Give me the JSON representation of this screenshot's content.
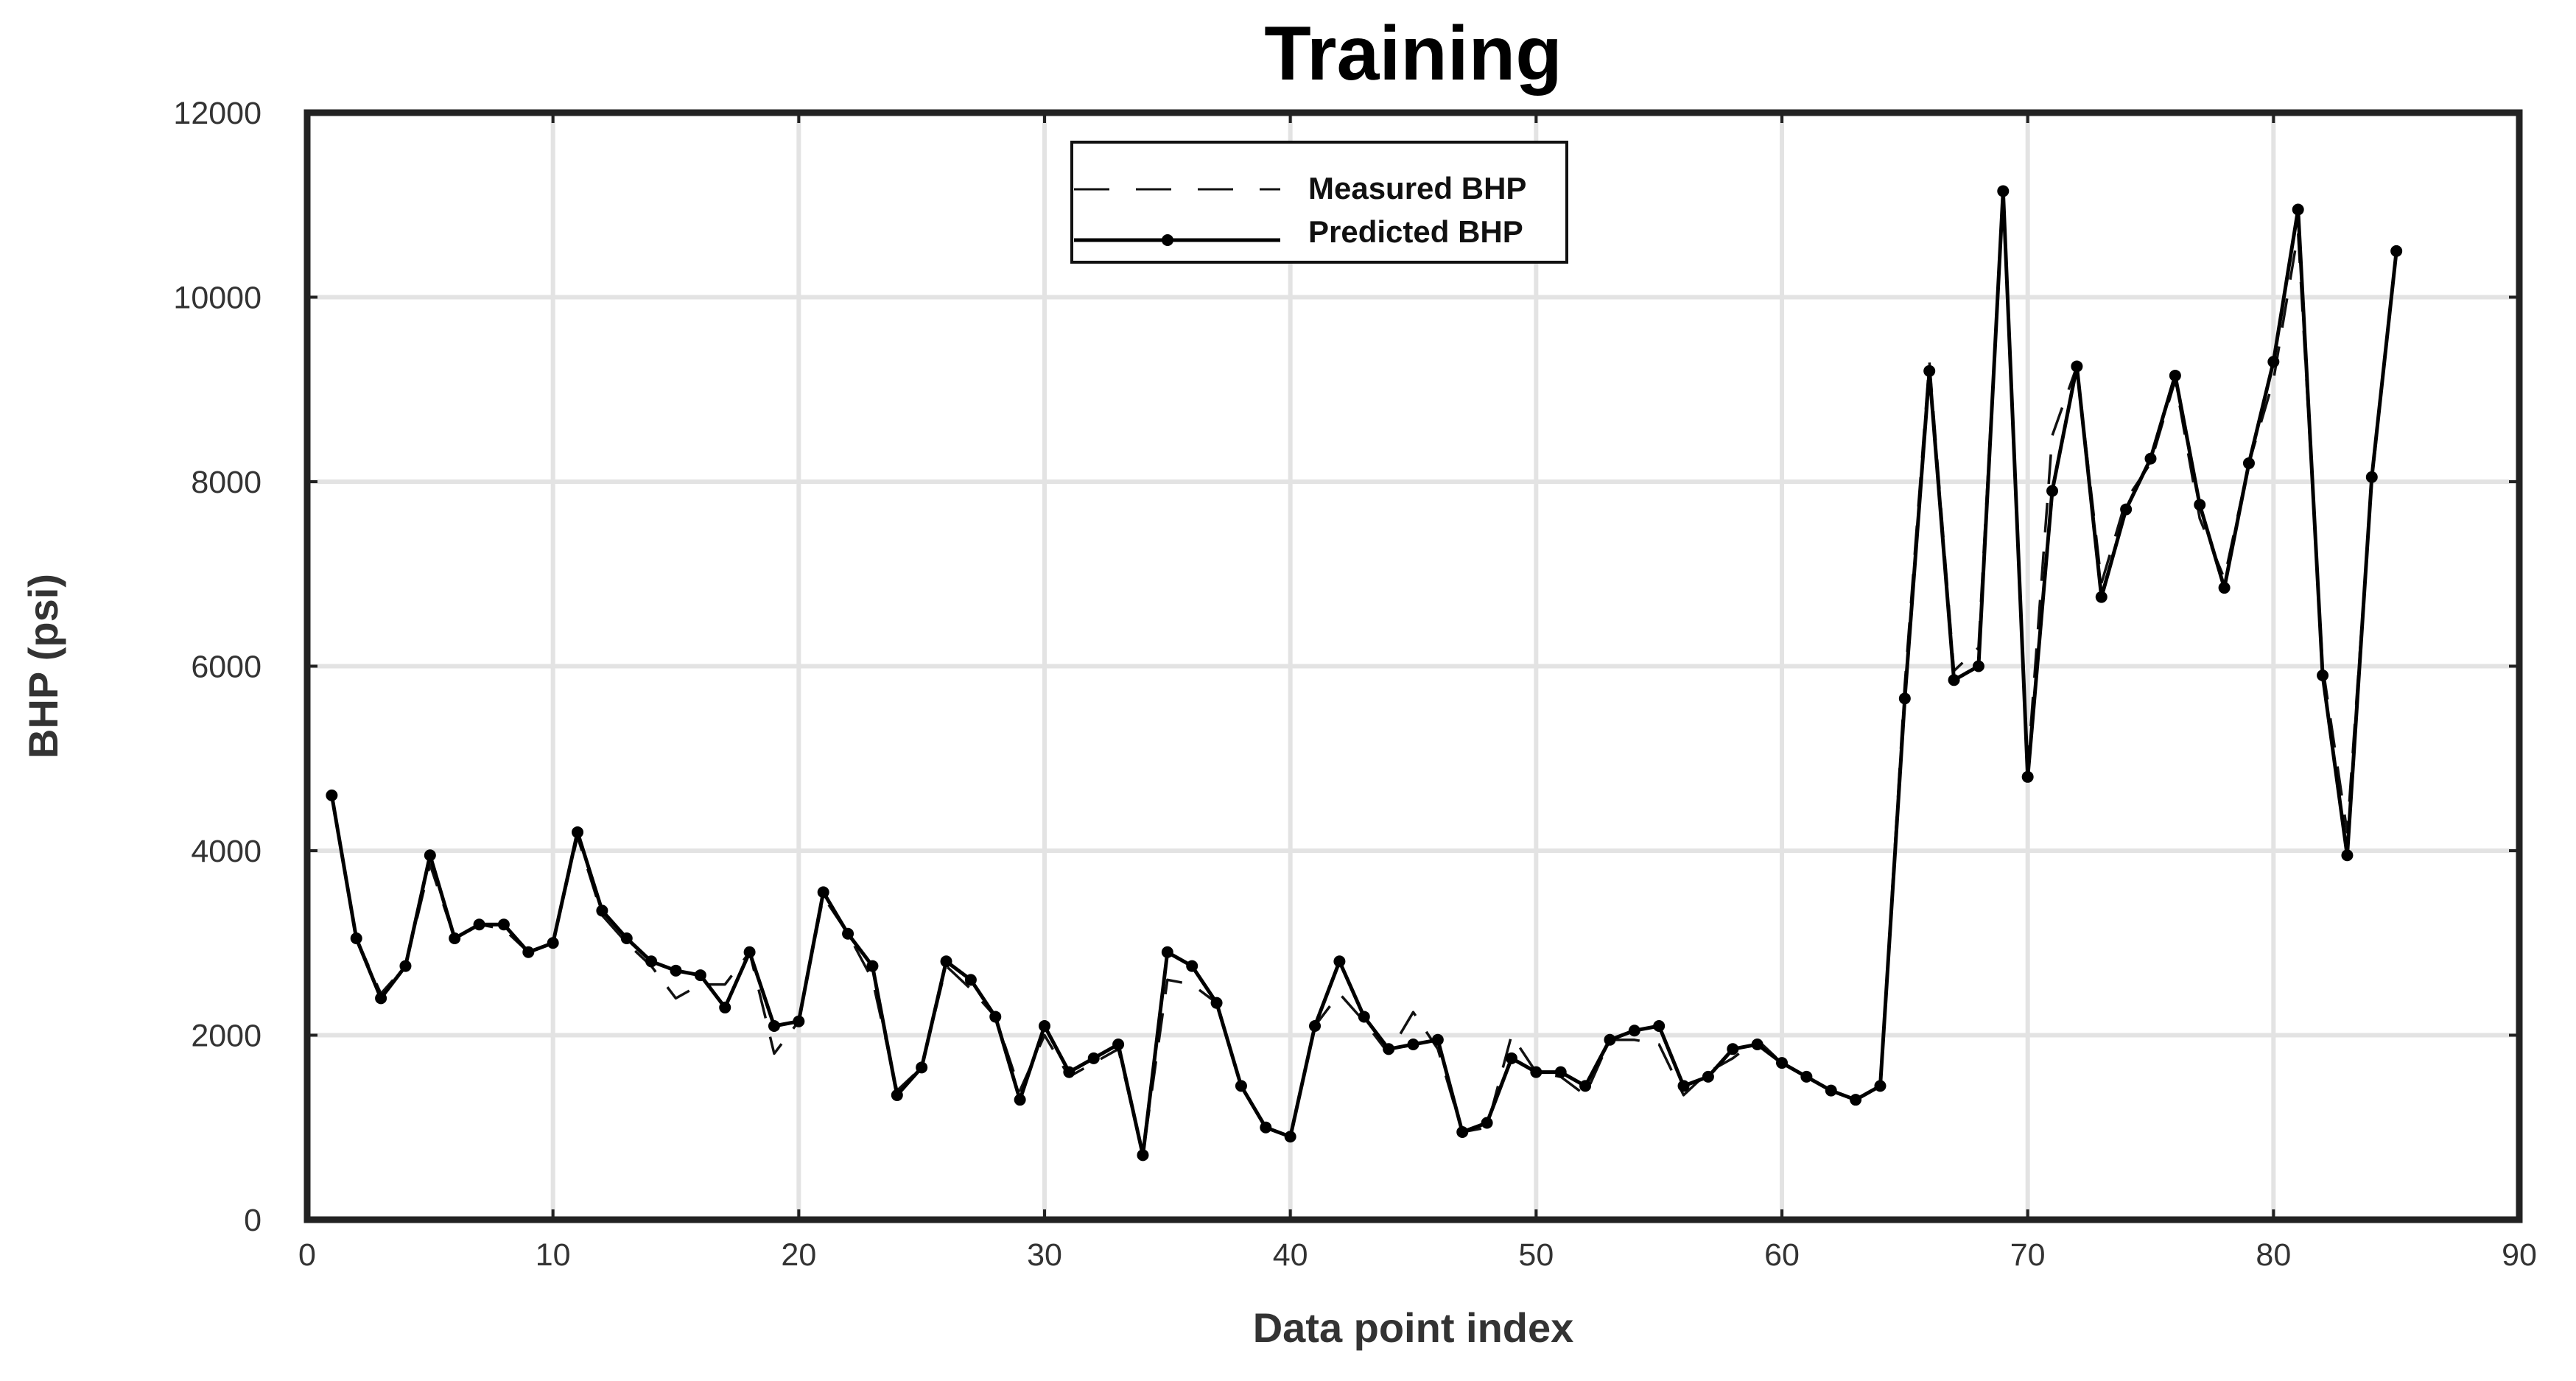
{
  "chart_data": {
    "type": "line",
    "title": "Training",
    "xlabel": "Data point index",
    "ylabel": "BHP (psi)",
    "xlim": [
      0,
      90
    ],
    "ylim": [
      0,
      12000
    ],
    "xticks": [
      0,
      10,
      20,
      30,
      40,
      50,
      60,
      70,
      80,
      90
    ],
    "yticks": [
      0,
      2000,
      4000,
      6000,
      8000,
      10000,
      12000
    ],
    "grid": true,
    "legend_position": "top-center",
    "series": [
      {
        "name": "Measured BHP",
        "style": "dashed",
        "color": "#111111",
        "x": [
          1,
          2,
          3,
          4,
          5,
          6,
          7,
          8,
          9,
          10,
          11,
          12,
          13,
          14,
          15,
          16,
          17,
          18,
          19,
          20,
          21,
          22,
          23,
          24,
          25,
          26,
          27,
          28,
          29,
          30,
          31,
          32,
          33,
          34,
          35,
          36,
          37,
          38,
          39,
          40,
          41,
          42,
          43,
          44,
          45,
          46,
          47,
          48,
          49,
          50,
          51,
          52,
          53,
          54,
          55,
          56,
          57,
          58,
          59,
          60,
          61,
          62,
          63,
          64,
          65,
          66,
          67,
          68,
          69,
          70,
          71,
          72,
          73,
          74,
          75,
          76,
          77,
          78,
          79,
          80,
          81,
          82,
          83,
          84,
          85
        ],
        "values": [
          4600,
          3050,
          2450,
          2750,
          3850,
          3050,
          3200,
          3150,
          2900,
          3000,
          4150,
          3300,
          3000,
          2750,
          2400,
          2550,
          2550,
          2900,
          1800,
          2150,
          3500,
          3100,
          2600,
          1400,
          1650,
          2750,
          2500,
          2200,
          1400,
          2000,
          1550,
          1700,
          1850,
          700,
          2600,
          2550,
          2350,
          1450,
          1000,
          900,
          2100,
          2450,
          2150,
          1800,
          2250,
          1850,
          950,
          1000,
          2000,
          1600,
          1550,
          1350,
          1950,
          1950,
          1900,
          1350,
          1600,
          1750,
          1950,
          1700,
          1550,
          1400,
          1300,
          1450,
          5800,
          9300,
          5950,
          6200,
          11100,
          4900,
          8500,
          9250,
          6900,
          7800,
          8200,
          9100,
          7600,
          6950,
          8200,
          9100,
          10700,
          6000,
          4200,
          8000,
          10500
        ]
      },
      {
        "name": "Predicted BHP",
        "style": "solid-markers",
        "color": "#000000",
        "x": [
          1,
          2,
          3,
          4,
          5,
          6,
          7,
          8,
          9,
          10,
          11,
          12,
          13,
          14,
          15,
          16,
          17,
          18,
          19,
          20,
          21,
          22,
          23,
          24,
          25,
          26,
          27,
          28,
          29,
          30,
          31,
          32,
          33,
          34,
          35,
          36,
          37,
          38,
          39,
          40,
          41,
          42,
          43,
          44,
          45,
          46,
          47,
          48,
          49,
          50,
          51,
          52,
          53,
          54,
          55,
          56,
          57,
          58,
          59,
          60,
          61,
          62,
          63,
          64,
          65,
          66,
          67,
          68,
          69,
          70,
          71,
          72,
          73,
          74,
          75,
          76,
          77,
          78,
          79,
          80,
          81,
          82,
          83,
          84,
          85
        ],
        "values": [
          4600,
          3050,
          2400,
          2750,
          3950,
          3050,
          3200,
          3200,
          2900,
          3000,
          4200,
          3350,
          3050,
          2800,
          2700,
          2650,
          2300,
          2900,
          2100,
          2150,
          3550,
          3100,
          2750,
          1350,
          1650,
          2800,
          2600,
          2200,
          1300,
          2100,
          1600,
          1750,
          1900,
          700,
          2900,
          2750,
          2350,
          1450,
          1000,
          900,
          2100,
          2800,
          2200,
          1850,
          1900,
          1950,
          950,
          1050,
          1750,
          1600,
          1600,
          1450,
          1950,
          2050,
          2100,
          1450,
          1550,
          1850,
          1900,
          1700,
          1550,
          1400,
          1300,
          1450,
          5650,
          9200,
          5850,
          6000,
          11150,
          4800,
          7900,
          9250,
          6750,
          7700,
          8250,
          9150,
          7750,
          6850,
          8200,
          9300,
          10950,
          5900,
          3950,
          8050,
          10500
        ]
      }
    ]
  }
}
